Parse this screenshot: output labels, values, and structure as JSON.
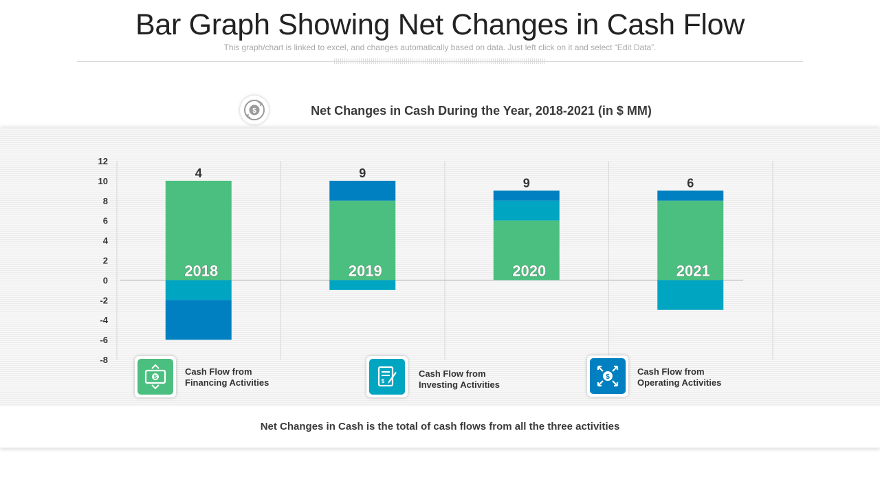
{
  "header": {
    "title": "Bar Graph Showing Net Changes in Cash Flow",
    "subtitle": "This graph/chart is linked to excel, and changes automatically based on data. Just left click on it and select “Edit Data”."
  },
  "chart_data": {
    "type": "bar",
    "stacked": true,
    "title": "Net Changes in Cash During the Year, 2018-2021 (in $ MM)",
    "categories": [
      "2018",
      "2019",
      "2020",
      "2021"
    ],
    "series": [
      {
        "name": "Cash Flow from Financing Activities",
        "color": "#4bbf7f",
        "values": [
          10,
          8,
          6,
          8
        ]
      },
      {
        "name": "Cash Flow from Investing Activities",
        "color": "#00a5c1",
        "values": [
          -2,
          -1,
          2,
          -3
        ]
      },
      {
        "name": "Cash Flow from Operating Activities",
        "color": "#0080c0",
        "values": [
          -4,
          2,
          1,
          1
        ]
      }
    ],
    "totals": [
      4,
      9,
      9,
      6
    ],
    "ylim": [
      -8,
      12
    ],
    "yticks": [
      12,
      10,
      8,
      6,
      4,
      2,
      0,
      -2,
      -4,
      -6,
      -8
    ],
    "grid": true
  },
  "legend": [
    {
      "line1": "Cash Flow from",
      "line2": "Financing Activities",
      "icon": "money-bill-icon",
      "color": "#4bbf7f"
    },
    {
      "line1": "Cash Flow from",
      "line2": "Investing Activities",
      "icon": "notepad-pencil-icon",
      "color": "#00a5c1"
    },
    {
      "line1": "Cash Flow from",
      "line2": "Operating Activities",
      "icon": "dollar-arrows-icon",
      "color": "#0080c0"
    }
  ],
  "footer": {
    "text": "Net Changes in Cash is the total of cash flows from all the three activities"
  }
}
